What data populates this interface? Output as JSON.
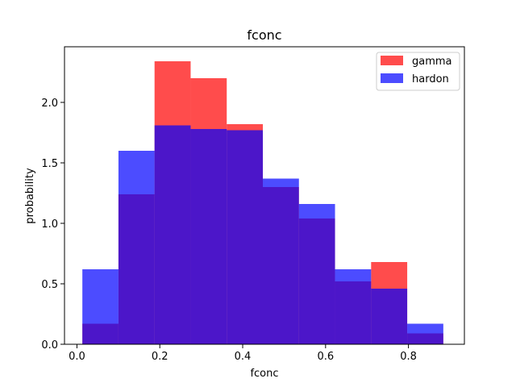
{
  "chart_data": {
    "type": "bar",
    "title": "fconc",
    "xlabel": "fconc",
    "ylabel": "probability",
    "xlim": [
      -0.03,
      0.935
    ],
    "ylim": [
      0,
      2.46
    ],
    "xticks": [
      0.0,
      0.2,
      0.4,
      0.6,
      0.8
    ],
    "yticks": [
      0.0,
      0.5,
      1.0,
      1.5,
      2.0
    ],
    "xtick_labels": [
      "0.0",
      "0.2",
      "0.4",
      "0.6",
      "0.8"
    ],
    "ytick_labels": [
      "0.0",
      "0.5",
      "1.0",
      "1.5",
      "2.0"
    ],
    "bin_edges": [
      0.0131,
      0.1002,
      0.1873,
      0.2744,
      0.3615,
      0.4486,
      0.5357,
      0.6228,
      0.7099,
      0.797,
      0.8841
    ],
    "grid": false,
    "legend_position": "top-right",
    "series": [
      {
        "name": "gamma",
        "color": "#ff0000",
        "alpha": 0.7,
        "values": [
          0.17,
          1.24,
          2.34,
          2.2,
          1.82,
          1.3,
          1.04,
          0.52,
          0.68,
          0.09
        ]
      },
      {
        "name": "hardon",
        "color": "#0000ff",
        "alpha": 0.7,
        "values": [
          0.62,
          1.6,
          1.81,
          1.78,
          1.77,
          1.37,
          1.16,
          0.62,
          0.46,
          0.17
        ]
      }
    ]
  }
}
